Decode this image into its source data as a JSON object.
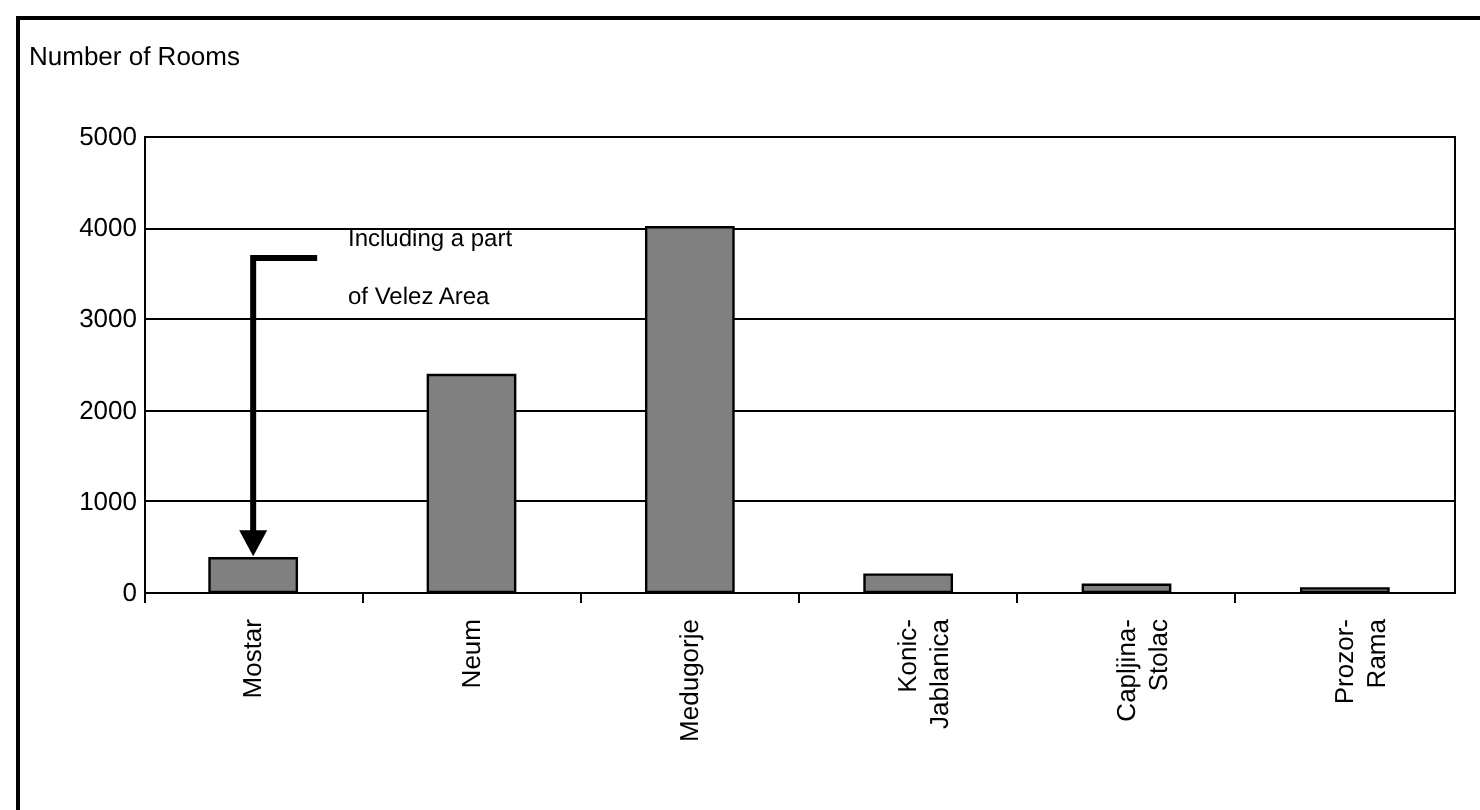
{
  "chart_data": {
    "type": "bar",
    "ylabel": "Number of Rooms",
    "categories": [
      "Mostar",
      "Neum",
      "Medugorje",
      "Konic-\nJablanica",
      "Capljina-\nStolac",
      "Prozor-\nRama"
    ],
    "values": [
      370,
      2380,
      4000,
      190,
      80,
      40
    ],
    "color": "#808080",
    "ylim": [
      0,
      5000
    ],
    "yticks": [
      0,
      1000,
      2000,
      3000,
      4000,
      5000
    ],
    "grid": "y",
    "annotations": [
      "Including a part\nof Velez Area"
    ]
  }
}
